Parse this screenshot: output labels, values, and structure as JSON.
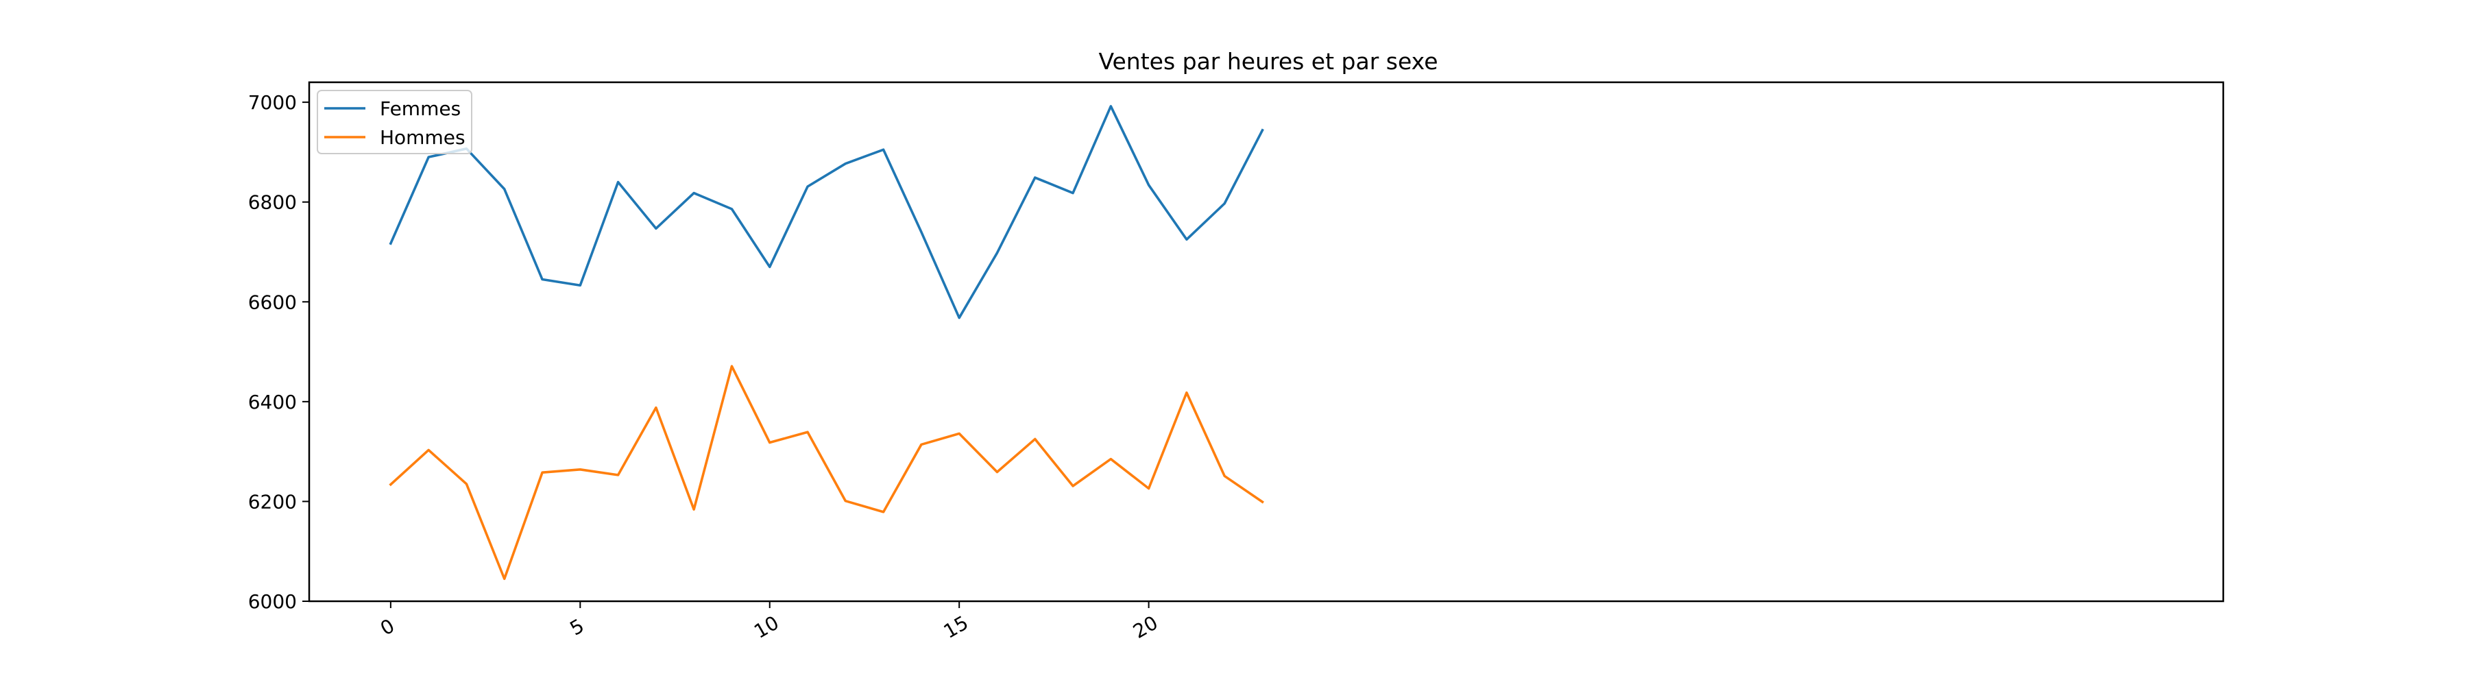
{
  "chart_data": {
    "type": "line",
    "title": "Ventes par heures et par sexe",
    "xlabel": "",
    "ylabel": "",
    "x": [
      0,
      1,
      2,
      3,
      4,
      5,
      6,
      7,
      8,
      9,
      10,
      11,
      12,
      13,
      14,
      15,
      16,
      17,
      18,
      19,
      20,
      21,
      22,
      23
    ],
    "xlim": [
      -2.15,
      48.35
    ],
    "ylim": [
      6000,
      7040
    ],
    "xticks": [
      0,
      5,
      10,
      15,
      20
    ],
    "yticks": [
      6000,
      6200,
      6400,
      6600,
      6800,
      7000
    ],
    "xtick_rotation": -30,
    "grid": false,
    "legend_position": "upper left",
    "series": [
      {
        "name": "Femmes",
        "color": "#1f77b4",
        "values": [
          6717,
          6890,
          6907,
          6826,
          6645,
          6633,
          6840,
          6747,
          6818,
          6786,
          6670,
          6831,
          6877,
          6905,
          6740,
          6568,
          6698,
          6849,
          6818,
          6992,
          6834,
          6725,
          6797,
          6944
        ]
      },
      {
        "name": "Hommes",
        "color": "#ff7f0e",
        "values": [
          6234,
          6303,
          6235,
          6045,
          6258,
          6264,
          6253,
          6388,
          6184,
          6471,
          6318,
          6339,
          6201,
          6179,
          6314,
          6336,
          6259,
          6325,
          6231,
          6285,
          6226,
          6418,
          6251,
          6199
        ]
      }
    ]
  }
}
